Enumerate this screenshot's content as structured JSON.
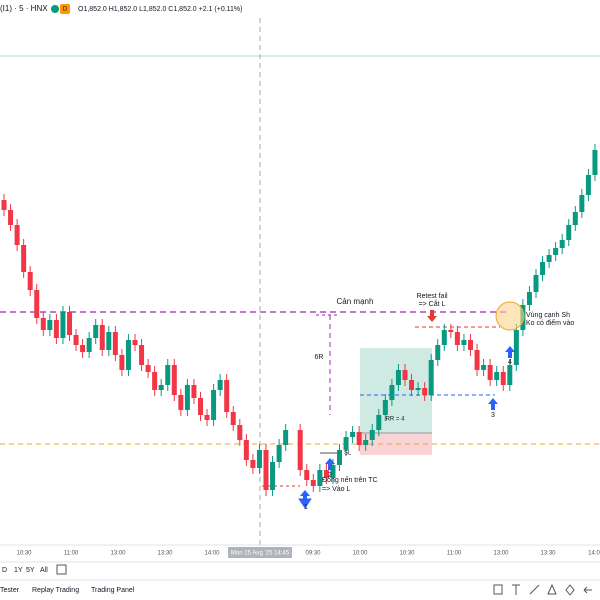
{
  "header": {
    "symbol": "(I1) · 5 · HNX",
    "badge": "D",
    "ohlc": "O1,852.0 H1,852.0 L1,852.0 C1,852.0 +2.1 (+0.11%)"
  },
  "annotations": {
    "resistance": "Cản mạnh",
    "ratio": "6R",
    "retest_1": "Retest fail",
    "retest_2": "=> Cắt L",
    "rr": "RR = 4",
    "sl": "SL",
    "entry_1": "Đóng nến trên TC",
    "entry_2": "=> Vào L",
    "zone_1": "Vùng cạnh Sh",
    "zone_2": "Ko có điểm vào",
    "markers": [
      "1",
      "2",
      "3",
      "4"
    ]
  },
  "time_axis": {
    "labels": [
      "10:30",
      "11:00",
      "13:00",
      "13:30",
      "14:00",
      "Mon 25 Aug '25  14:45",
      "09:30",
      "10:00",
      "10:30",
      "11:00",
      "13:00",
      "13:30",
      "14:0"
    ]
  },
  "toolbar": {
    "ranges": [
      "D",
      "1Y",
      "5Y",
      "All"
    ],
    "tabs": [
      "Tester",
      "Replay Trading",
      "Trading Panel"
    ]
  }
}
